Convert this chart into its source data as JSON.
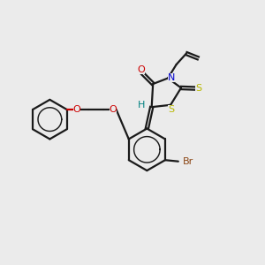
{
  "bg_color": "#ebebeb",
  "bond_color": "#1a1a1a",
  "O_color": "#cc0000",
  "N_color": "#0000cc",
  "S_color": "#b8b800",
  "Br_color": "#8b4513",
  "H_color": "#008080",
  "lw": 1.6,
  "dbo": 0.055,
  "xlim": [
    0,
    10
  ],
  "ylim": [
    0,
    10
  ]
}
